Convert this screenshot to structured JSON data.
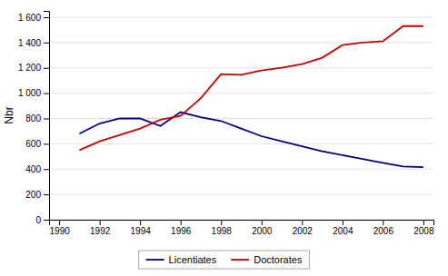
{
  "chart_data": {
    "type": "line",
    "ylabel": "Nbr",
    "x": [
      1991,
      1992,
      1993,
      1994,
      1995,
      1996,
      1997,
      1998,
      1999,
      2000,
      2001,
      2002,
      2003,
      2004,
      2005,
      2006,
      2007,
      2008
    ],
    "series": [
      {
        "name": "Licentiates",
        "color": "#000080",
        "values": [
          680,
          760,
          800,
          800,
          740,
          850,
          810,
          780,
          720,
          660,
          620,
          580,
          540,
          510,
          480,
          450,
          420,
          415
        ]
      },
      {
        "name": "Doctorates",
        "color": "#CC0000",
        "values": [
          550,
          620,
          670,
          720,
          790,
          820,
          960,
          1150,
          1145,
          1180,
          1200,
          1230,
          1280,
          1380,
          1400,
          1410,
          1530,
          1530
        ]
      }
    ],
    "xlim": [
      1989.5,
      2008.5
    ],
    "xticks": [
      1990,
      1992,
      1994,
      1996,
      1998,
      2000,
      2002,
      2004,
      2006,
      2008
    ],
    "ylim": [
      0,
      1650
    ],
    "yticks": [
      0,
      200,
      400,
      600,
      800,
      {
        "value": 1000,
        "label": "1 000"
      },
      {
        "value": 1200,
        "label": "1 200"
      },
      {
        "value": 1400,
        "label": "1 400"
      },
      {
        "value": 1600,
        "label": "1 600"
      }
    ],
    "grid": true,
    "legend": "bottom"
  }
}
